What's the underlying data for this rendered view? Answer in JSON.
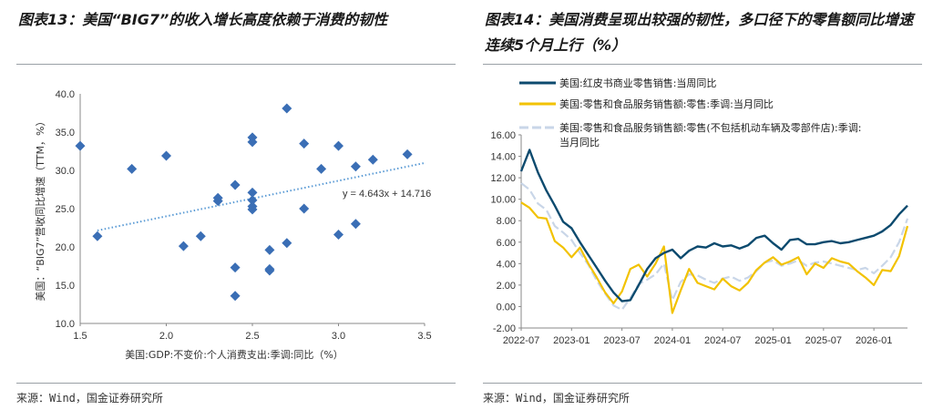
{
  "charts": [
    {
      "title": "图表13：美国“BIG7”的收入增长高度依赖于消费的韧性",
      "source": "来源：Wind，国金证券研究所"
    },
    {
      "title": "图表14：美国消费呈现出较强的韧性，多口径下的零售额同比增速连续5个月上行（%）",
      "source": "来源：Wind，国金证券研究所"
    }
  ],
  "chart_data": [
    {
      "type": "scatter",
      "title": "图表13：美国“BIG7”的收入增长高度依赖于消费的韧性",
      "xlabel": "美国:GDP:不变价:个人消费支出:季调:同比（%）",
      "ylabel": "美国：“BIG7”营收同比增速（TTM，%）",
      "xlim": [
        1.5,
        3.5
      ],
      "ylim": [
        10.0,
        40.0
      ],
      "x_ticks": [
        "1.5",
        "2.0",
        "2.5",
        "3.0",
        "3.5"
      ],
      "y_ticks": [
        "10.0",
        "15.0",
        "20.0",
        "25.0",
        "30.0",
        "35.0",
        "40.0"
      ],
      "marker_color": "#3a6eb5",
      "trendline": {
        "slope": 4.643,
        "intercept": 14.716,
        "label": "y = 4.643x + 14.716",
        "color": "#5b9bd5"
      },
      "points": [
        {
          "x": 1.5,
          "y": 33.2
        },
        {
          "x": 1.6,
          "y": 21.4
        },
        {
          "x": 1.8,
          "y": 30.2
        },
        {
          "x": 2.0,
          "y": 31.9
        },
        {
          "x": 2.1,
          "y": 20.1
        },
        {
          "x": 2.2,
          "y": 21.4
        },
        {
          "x": 2.3,
          "y": 26.4
        },
        {
          "x": 2.3,
          "y": 26.0
        },
        {
          "x": 2.4,
          "y": 28.1
        },
        {
          "x": 2.4,
          "y": 17.3
        },
        {
          "x": 2.4,
          "y": 13.6
        },
        {
          "x": 2.5,
          "y": 34.3
        },
        {
          "x": 2.5,
          "y": 33.7
        },
        {
          "x": 2.5,
          "y": 27.1
        },
        {
          "x": 2.5,
          "y": 26.1
        },
        {
          "x": 2.5,
          "y": 25.3
        },
        {
          "x": 2.5,
          "y": 24.9
        },
        {
          "x": 2.6,
          "y": 19.6
        },
        {
          "x": 2.6,
          "y": 17.1
        },
        {
          "x": 2.6,
          "y": 16.9
        },
        {
          "x": 2.7,
          "y": 38.1
        },
        {
          "x": 2.7,
          "y": 20.5
        },
        {
          "x": 2.8,
          "y": 33.5
        },
        {
          "x": 2.8,
          "y": 25.0
        },
        {
          "x": 2.9,
          "y": 30.2
        },
        {
          "x": 3.0,
          "y": 33.2
        },
        {
          "x": 3.0,
          "y": 21.6
        },
        {
          "x": 3.1,
          "y": 30.5
        },
        {
          "x": 3.1,
          "y": 23.0
        },
        {
          "x": 3.2,
          "y": 31.4
        },
        {
          "x": 3.4,
          "y": 32.1
        }
      ]
    },
    {
      "type": "line",
      "title": "图表14：美国消费呈现出较强的韧性，多口径下的零售额同比增速连续5个月上行（%）",
      "ylim": [
        -2.0,
        16.0
      ],
      "y_ticks": [
        "-2.00",
        "0.00",
        "2.00",
        "4.00",
        "6.00",
        "8.00",
        "10.00",
        "12.00",
        "14.00",
        "16.00"
      ],
      "x_ticks": [
        "2022-07",
        "2023-01",
        "2023-07",
        "2024-01",
        "2024-07",
        "2025-01",
        "2025-07",
        "2026-01"
      ],
      "x_range": [
        "2022-07",
        "2026-05"
      ],
      "legend_placement": "top",
      "series": [
        {
          "name": "美国:红皮书商业零售销售:当周同比",
          "color": "#0c4a6e",
          "dashed": false,
          "points": [
            [
              "2022-07",
              12.6
            ],
            [
              "2022-08",
              14.6
            ],
            [
              "2022-09",
              12.5
            ],
            [
              "2022-10",
              10.8
            ],
            [
              "2022-11",
              9.4
            ],
            [
              "2022-12",
              7.9
            ],
            [
              "2023-01",
              7.3
            ],
            [
              "2023-02",
              6.0
            ],
            [
              "2023-03",
              4.8
            ],
            [
              "2023-04",
              3.6
            ],
            [
              "2023-05",
              2.4
            ],
            [
              "2023-06",
              1.3
            ],
            [
              "2023-07",
              0.5
            ],
            [
              "2023-08",
              0.6
            ],
            [
              "2023-09",
              2.0
            ],
            [
              "2023-10",
              3.5
            ],
            [
              "2023-11",
              4.5
            ],
            [
              "2023-12",
              5.0
            ],
            [
              "2024-01",
              5.3
            ],
            [
              "2024-02",
              4.5
            ],
            [
              "2024-03",
              5.2
            ],
            [
              "2024-04",
              5.6
            ],
            [
              "2024-05",
              5.5
            ],
            [
              "2024-06",
              5.9
            ],
            [
              "2024-07",
              5.6
            ],
            [
              "2024-08",
              5.7
            ],
            [
              "2024-09",
              5.4
            ],
            [
              "2024-10",
              5.7
            ],
            [
              "2024-11",
              6.4
            ],
            [
              "2024-12",
              6.6
            ],
            [
              "2025-01",
              5.9
            ],
            [
              "2025-02",
              5.3
            ],
            [
              "2025-03",
              6.2
            ],
            [
              "2025-04",
              6.3
            ],
            [
              "2025-05",
              5.8
            ],
            [
              "2025-06",
              5.8
            ],
            [
              "2025-07",
              6.0
            ],
            [
              "2025-08",
              6.1
            ],
            [
              "2025-09",
              5.9
            ],
            [
              "2025-10",
              6.0
            ],
            [
              "2025-11",
              6.2
            ],
            [
              "2025-12",
              6.4
            ],
            [
              "2026-01",
              6.6
            ],
            [
              "2026-02",
              7.0
            ],
            [
              "2026-03",
              7.6
            ],
            [
              "2026-04",
              8.6
            ],
            [
              "2026-05",
              9.4
            ]
          ]
        },
        {
          "name": "美国:零售和食品服务销售额:零售:季调:当月同比",
          "color": "#f2c200",
          "dashed": false,
          "points": [
            [
              "2022-07",
              9.7
            ],
            [
              "2022-08",
              9.2
            ],
            [
              "2022-09",
              8.3
            ],
            [
              "2022-10",
              8.2
            ],
            [
              "2022-11",
              6.1
            ],
            [
              "2022-12",
              5.5
            ],
            [
              "2023-01",
              4.6
            ],
            [
              "2023-02",
              5.5
            ],
            [
              "2023-03",
              4.0
            ],
            [
              "2023-04",
              2.7
            ],
            [
              "2023-05",
              1.3
            ],
            [
              "2023-06",
              0.3
            ],
            [
              "2023-07",
              1.4
            ],
            [
              "2023-08",
              3.5
            ],
            [
              "2023-09",
              3.9
            ],
            [
              "2023-10",
              2.8
            ],
            [
              "2023-11",
              4.0
            ],
            [
              "2023-12",
              5.6
            ],
            [
              "2024-01",
              -0.6
            ],
            [
              "2024-02",
              1.5
            ],
            [
              "2024-03",
              3.5
            ],
            [
              "2024-04",
              2.2
            ],
            [
              "2024-05",
              1.9
            ],
            [
              "2024-06",
              1.6
            ],
            [
              "2024-07",
              2.6
            ],
            [
              "2024-08",
              1.9
            ],
            [
              "2024-09",
              1.5
            ],
            [
              "2024-10",
              2.2
            ],
            [
              "2024-11",
              3.4
            ],
            [
              "2024-12",
              4.1
            ],
            [
              "2025-01",
              4.6
            ],
            [
              "2025-02",
              3.9
            ],
            [
              "2025-03",
              4.2
            ],
            [
              "2025-04",
              4.6
            ],
            [
              "2025-05",
              3.0
            ],
            [
              "2025-06",
              4.0
            ],
            [
              "2025-07",
              3.6
            ],
            [
              "2025-08",
              4.5
            ],
            [
              "2025-09",
              4.2
            ],
            [
              "2025-10",
              4.0
            ],
            [
              "2025-11",
              3.3
            ],
            [
              "2025-12",
              2.7
            ],
            [
              "2026-01",
              2.0
            ],
            [
              "2026-02",
              3.4
            ],
            [
              "2026-03",
              3.3
            ],
            [
              "2026-04",
              4.7
            ],
            [
              "2026-05",
              7.5
            ]
          ]
        },
        {
          "name": "美国:零售和食品服务销售额:零售(不包括机动车辆及零部件店):季调:当月同比",
          "color": "#c9d6e8",
          "dashed": true,
          "points": [
            [
              "2022-07",
              11.5
            ],
            [
              "2022-08",
              10.9
            ],
            [
              "2022-09",
              9.6
            ],
            [
              "2022-10",
              9.0
            ],
            [
              "2022-11",
              7.5
            ],
            [
              "2022-12",
              6.9
            ],
            [
              "2023-01",
              6.2
            ],
            [
              "2023-02",
              5.0
            ],
            [
              "2023-03",
              3.9
            ],
            [
              "2023-04",
              2.4
            ],
            [
              "2023-05",
              1.2
            ],
            [
              "2023-06",
              0.1
            ],
            [
              "2023-07",
              -0.3
            ],
            [
              "2023-08",
              0.8
            ],
            [
              "2023-09",
              2.1
            ],
            [
              "2023-10",
              2.5
            ],
            [
              "2023-11",
              3.0
            ],
            [
              "2023-12",
              4.0
            ],
            [
              "2024-01",
              0.6
            ],
            [
              "2024-02",
              2.3
            ],
            [
              "2024-03",
              3.0
            ],
            [
              "2024-04",
              2.9
            ],
            [
              "2024-05",
              2.5
            ],
            [
              "2024-06",
              2.2
            ],
            [
              "2024-07",
              2.6
            ],
            [
              "2024-08",
              2.8
            ],
            [
              "2024-09",
              2.4
            ],
            [
              "2024-10",
              2.7
            ],
            [
              "2024-11",
              3.3
            ],
            [
              "2024-12",
              4.1
            ],
            [
              "2025-01",
              4.3
            ],
            [
              "2025-02",
              3.8
            ],
            [
              "2025-03",
              4.0
            ],
            [
              "2025-04",
              4.3
            ],
            [
              "2025-05",
              3.8
            ],
            [
              "2025-06",
              4.1
            ],
            [
              "2025-07",
              4.2
            ],
            [
              "2025-08",
              4.0
            ],
            [
              "2025-09",
              3.8
            ],
            [
              "2025-10",
              3.6
            ],
            [
              "2025-11",
              3.4
            ],
            [
              "2025-12",
              3.6
            ],
            [
              "2026-01",
              3.1
            ],
            [
              "2026-02",
              3.8
            ],
            [
              "2026-03",
              4.6
            ],
            [
              "2026-04",
              6.0
            ],
            [
              "2026-05",
              8.2
            ]
          ]
        }
      ]
    }
  ]
}
